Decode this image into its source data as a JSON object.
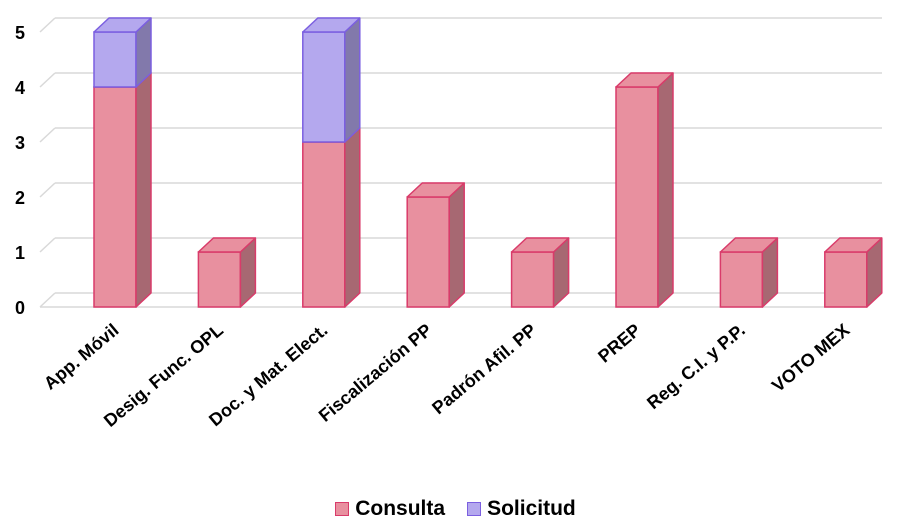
{
  "chart_data": {
    "type": "bar",
    "stacked": true,
    "three_d": true,
    "categories": [
      "App. Móvil",
      "Desig. Func. OPL",
      "Doc. y Mat. Elect.",
      "Fiscalización PP",
      "Padrón Afil. PP",
      "PREP",
      "Reg. C.I. y P.P.",
      "VOTO MEX"
    ],
    "series": [
      {
        "name": "Consulta",
        "values": [
          4,
          1,
          3,
          2,
          1,
          4,
          1,
          1
        ],
        "color": "#e8909f",
        "edge": "#d93b6a"
      },
      {
        "name": "Solicitud",
        "values": [
          1,
          0,
          2,
          0,
          0,
          0,
          0,
          0
        ],
        "color": "#b4a8ee",
        "edge": "#7b5fe0"
      }
    ],
    "yticks": [
      "0",
      "1",
      "2",
      "3",
      "4",
      "5"
    ],
    "ylim": [
      0,
      5
    ],
    "grid": true,
    "legend_position": "bottom",
    "title": "",
    "xlabel": "",
    "ylabel": ""
  }
}
